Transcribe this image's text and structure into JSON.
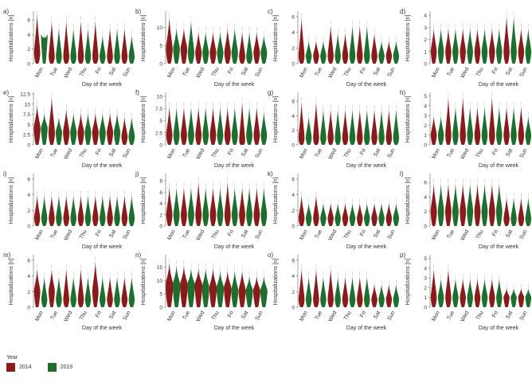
{
  "figure": {
    "legend": {
      "title": "Year",
      "items": [
        {
          "label": "2014",
          "color": "#8b1a1a"
        },
        {
          "label": "2019",
          "color": "#1e6e2e"
        }
      ]
    }
  },
  "chart_data": [
    {
      "panel": "a)",
      "type": "violin",
      "ylabel": "Hospitalizations [n]",
      "xlabel": "Day of the week",
      "ylim": [
        0,
        7
      ],
      "yticks": [
        0,
        2,
        4,
        6
      ],
      "categories": [
        "Mon",
        "Tue",
        "Wed",
        "Thu",
        "Fri",
        "Sat",
        "Sun"
      ],
      "max": [
        [
          7,
          4
        ],
        [
          6,
          5
        ],
        [
          6,
          5
        ],
        [
          6,
          5
        ],
        [
          6,
          4
        ],
        [
          5,
          5
        ],
        [
          5,
          4
        ]
      ],
      "median": [
        [
          1.5,
          4
        ],
        [
          1,
          1
        ],
        [
          1,
          1
        ],
        [
          1,
          1
        ],
        [
          1,
          1
        ],
        [
          1,
          1
        ],
        [
          1,
          1
        ]
      ]
    },
    {
      "panel": "b)",
      "type": "violin",
      "ylabel": "Hospitalizations [n]",
      "xlabel": "Day of the week",
      "ylim": [
        0,
        14
      ],
      "yticks": [
        0,
        5,
        10
      ],
      "categories": [
        "Mon",
        "Tue",
        "Wed",
        "Thu",
        "Fri",
        "Sat",
        "Sun"
      ],
      "max": [
        [
          13,
          10
        ],
        [
          10,
          12
        ],
        [
          9,
          9
        ],
        [
          9,
          9
        ],
        [
          10,
          10
        ],
        [
          9,
          9
        ],
        [
          9,
          8
        ]
      ],
      "median": [
        [
          4,
          4
        ],
        [
          4,
          3
        ],
        [
          3,
          3
        ],
        [
          3,
          3
        ],
        [
          3,
          3
        ],
        [
          2,
          2
        ],
        [
          3,
          3
        ]
      ]
    },
    {
      "panel": "c)",
      "type": "violin",
      "ylabel": "Hospitalizations [n]",
      "xlabel": "Day of the week",
      "ylim": [
        0,
        6.5
      ],
      "yticks": [
        0,
        2,
        4,
        6
      ],
      "categories": [
        "Mon",
        "Tue",
        "Wed",
        "Thu",
        "Fri",
        "Sat",
        "Sun"
      ],
      "max": [
        [
          6,
          3
        ],
        [
          3,
          3
        ],
        [
          5,
          4
        ],
        [
          4,
          5
        ],
        [
          5,
          5
        ],
        [
          4,
          3
        ],
        [
          3,
          3
        ]
      ],
      "median": [
        [
          1,
          1
        ],
        [
          1,
          1
        ],
        [
          1,
          1
        ],
        [
          1,
          1
        ],
        [
          1,
          1
        ],
        [
          1,
          1
        ],
        [
          1,
          1
        ]
      ]
    },
    {
      "panel": "d)",
      "type": "violin",
      "ylabel": "Hospitalizations [n]",
      "xlabel": "Day of the week",
      "ylim": [
        0,
        4.2
      ],
      "yticks": [
        0,
        1,
        2,
        3,
        4
      ],
      "categories": [
        "Mon",
        "Tue",
        "Wed",
        "Thu",
        "Fri",
        "Sat",
        "Sun"
      ],
      "max": [
        [
          3,
          3
        ],
        [
          3,
          3
        ],
        [
          3,
          3
        ],
        [
          3,
          3
        ],
        [
          3,
          3
        ],
        [
          4,
          4
        ],
        [
          3,
          3
        ]
      ],
      "median": [
        [
          1,
          1
        ],
        [
          1,
          1
        ],
        [
          1,
          1
        ],
        [
          1,
          1
        ],
        [
          1,
          1
        ],
        [
          1,
          1
        ],
        [
          1,
          1
        ]
      ]
    },
    {
      "panel": "e)",
      "type": "violin",
      "ylabel": "Hospitalizations [n]",
      "xlabel": "Day of the week",
      "ylim": [
        0,
        12.5
      ],
      "yticks": [
        0,
        2.5,
        5.0,
        7.5,
        10.0,
        12.5
      ],
      "categories": [
        "Mon",
        "Tue",
        "Wed",
        "Thu",
        "Fri",
        "Sat",
        "Sun"
      ],
      "max": [
        [
          10,
          8
        ],
        [
          12,
          7
        ],
        [
          9,
          8
        ],
        [
          8,
          8
        ],
        [
          8,
          8
        ],
        [
          8,
          8
        ],
        [
          7,
          7
        ]
      ],
      "median": [
        [
          4,
          4
        ],
        [
          3,
          3
        ],
        [
          3,
          3
        ],
        [
          3,
          3
        ],
        [
          3,
          3
        ],
        [
          3,
          3
        ],
        [
          2,
          2
        ]
      ]
    },
    {
      "panel": "f)",
      "type": "violin",
      "ylabel": "Hospitalizations [n]",
      "xlabel": "Day of the week",
      "ylim": [
        0,
        10.5
      ],
      "yticks": [
        0,
        2.5,
        5.0,
        7.5,
        10.0
      ],
      "categories": [
        "Mon",
        "Tue",
        "Wed",
        "Thu",
        "Fri",
        "Sat",
        "Sun"
      ],
      "max": [
        [
          8,
          8
        ],
        [
          8,
          8
        ],
        [
          8,
          8
        ],
        [
          8,
          8
        ],
        [
          8,
          8
        ],
        [
          9,
          8
        ],
        [
          8,
          7
        ]
      ],
      "median": [
        [
          2,
          2
        ],
        [
          2,
          2
        ],
        [
          2,
          2
        ],
        [
          2,
          2
        ],
        [
          2,
          2
        ],
        [
          1,
          2
        ],
        [
          2,
          2
        ]
      ]
    },
    {
      "panel": "g)",
      "type": "violin",
      "ylabel": "Hospitalizations [n]",
      "xlabel": "Day of the week",
      "ylim": [
        0,
        7
      ],
      "yticks": [
        0,
        2,
        4,
        6
      ],
      "categories": [
        "Mon",
        "Tue",
        "Wed",
        "Thu",
        "Fri",
        "Sat",
        "Sun"
      ],
      "max": [
        [
          6,
          4
        ],
        [
          6,
          5
        ],
        [
          5,
          5
        ],
        [
          5,
          5
        ],
        [
          5,
          5
        ],
        [
          5,
          5
        ],
        [
          5,
          5
        ]
      ],
      "median": [
        [
          1,
          1
        ],
        [
          1,
          1
        ],
        [
          1,
          1
        ],
        [
          1,
          1
        ],
        [
          1,
          1
        ],
        [
          1,
          1
        ],
        [
          1,
          1
        ]
      ]
    },
    {
      "panel": "h)",
      "type": "violin",
      "ylabel": "Hospitalizations [n]",
      "xlabel": "Day of the week",
      "ylim": [
        0,
        5.2
      ],
      "yticks": [
        0,
        1,
        2,
        3,
        4,
        5
      ],
      "categories": [
        "Mon",
        "Tue",
        "Wed",
        "Thu",
        "Fri",
        "Sat",
        "Sun"
      ],
      "max": [
        [
          3,
          3
        ],
        [
          5,
          4
        ],
        [
          5,
          4
        ],
        [
          4,
          4
        ],
        [
          5,
          4
        ],
        [
          4,
          4
        ],
        [
          4,
          3
        ]
      ],
      "median": [
        [
          1,
          1
        ],
        [
          1,
          1
        ],
        [
          1,
          1
        ],
        [
          1,
          1
        ],
        [
          1,
          1
        ],
        [
          1,
          1
        ],
        [
          1,
          1
        ]
      ]
    },
    {
      "panel": "i)",
      "type": "violin",
      "ylabel": "Hospitalizations [n]",
      "xlabel": "Day of the week",
      "ylim": [
        0,
        6.5
      ],
      "yticks": [
        0,
        2,
        4,
        6
      ],
      "categories": [
        "Mon",
        "Tue",
        "Wed",
        "Thu",
        "Fri",
        "Sat",
        "Sun"
      ],
      "max": [
        [
          4,
          4
        ],
        [
          4,
          4
        ],
        [
          4,
          4
        ],
        [
          4,
          4
        ],
        [
          4,
          4
        ],
        [
          4,
          4
        ],
        [
          4,
          4
        ]
      ],
      "median": [
        [
          1,
          1
        ],
        [
          1,
          1
        ],
        [
          1,
          1
        ],
        [
          1,
          1
        ],
        [
          1,
          1
        ],
        [
          1,
          1
        ],
        [
          1,
          1
        ]
      ]
    },
    {
      "panel": "j)",
      "type": "violin",
      "ylabel": "Hospitalizations [n]",
      "xlabel": "Day of the week",
      "ylim": [
        0,
        9
      ],
      "yticks": [
        0,
        2,
        4,
        6,
        8
      ],
      "categories": [
        "Mon",
        "Tue",
        "Wed",
        "Thu",
        "Fri",
        "Sat",
        "Sun"
      ],
      "max": [
        [
          7,
          7
        ],
        [
          7,
          7
        ],
        [
          8,
          7
        ],
        [
          7,
          7
        ],
        [
          8,
          7
        ],
        [
          7,
          7
        ],
        [
          7,
          7
        ]
      ],
      "median": [
        [
          2,
          2
        ],
        [
          2,
          2
        ],
        [
          2,
          2
        ],
        [
          2,
          2
        ],
        [
          2,
          2
        ],
        [
          2,
          2
        ],
        [
          2,
          2
        ]
      ]
    },
    {
      "panel": "k)",
      "type": "violin",
      "ylabel": "Hospitalizations [n]",
      "xlabel": "Day of the week",
      "ylim": [
        0,
        6.5
      ],
      "yticks": [
        0,
        2,
        4,
        6
      ],
      "categories": [
        "Mon",
        "Tue",
        "Wed",
        "Thu",
        "Fri",
        "Sat",
        "Sun"
      ],
      "max": [
        [
          4,
          3
        ],
        [
          4,
          3
        ],
        [
          3,
          3
        ],
        [
          3,
          3
        ],
        [
          3,
          3
        ],
        [
          3,
          3
        ],
        [
          3,
          3
        ]
      ],
      "median": [
        [
          1,
          1
        ],
        [
          1,
          1
        ],
        [
          1,
          1
        ],
        [
          1,
          1
        ],
        [
          1,
          1
        ],
        [
          1,
          1
        ],
        [
          1,
          1
        ]
      ]
    },
    {
      "panel": "l)",
      "type": "violin",
      "ylabel": "Hospitalizations [n]",
      "xlabel": "Day of the week",
      "ylim": [
        0,
        7
      ],
      "yticks": [
        0,
        2,
        4,
        6
      ],
      "categories": [
        "Mon",
        "Tue",
        "Wed",
        "Thu",
        "Fri",
        "Sat",
        "Sun"
      ],
      "max": [
        [
          6,
          6
        ],
        [
          6,
          6
        ],
        [
          6,
          6
        ],
        [
          6,
          6
        ],
        [
          6,
          6
        ],
        [
          4,
          4
        ],
        [
          4,
          4
        ]
      ],
      "median": [
        [
          2,
          2
        ],
        [
          2,
          2
        ],
        [
          2,
          2
        ],
        [
          2,
          2
        ],
        [
          2,
          2
        ],
        [
          1,
          1
        ],
        [
          1,
          1
        ]
      ]
    },
    {
      "panel": "m)",
      "type": "violin",
      "ylabel": "Hospitalizations [n]",
      "xlabel": "Day of the week",
      "ylim": [
        0,
        6.5
      ],
      "yticks": [
        0,
        2,
        4,
        6
      ],
      "categories": [
        "Mon",
        "Tue",
        "Wed",
        "Thu",
        "Fri",
        "Sat",
        "Sun"
      ],
      "max": [
        [
          5,
          4
        ],
        [
          5,
          4
        ],
        [
          5,
          4
        ],
        [
          5,
          4
        ],
        [
          6,
          4
        ],
        [
          4,
          4
        ],
        [
          4,
          4
        ]
      ],
      "median": [
        [
          2,
          1
        ],
        [
          2,
          1
        ],
        [
          1,
          1
        ],
        [
          1,
          1
        ],
        [
          2,
          1
        ],
        [
          1,
          1
        ],
        [
          1,
          1
        ]
      ]
    },
    {
      "panel": "n)",
      "type": "violin",
      "ylabel": "Hospitalizations [n]",
      "xlabel": "Day of the week",
      "ylim": [
        0,
        19
      ],
      "yticks": [
        0,
        5,
        10,
        15
      ],
      "categories": [
        "Mon",
        "Tue",
        "Wed",
        "Thu",
        "Fri",
        "Sat",
        "Sun"
      ],
      "max": [
        [
          17,
          16
        ],
        [
          16,
          15
        ],
        [
          15,
          15
        ],
        [
          15,
          14
        ],
        [
          14,
          14
        ],
        [
          14,
          12
        ],
        [
          12,
          12
        ]
      ],
      "median": [
        [
          8,
          8
        ],
        [
          8,
          8
        ],
        [
          8,
          7
        ],
        [
          7,
          7
        ],
        [
          7,
          6
        ],
        [
          6,
          6
        ],
        [
          6,
          6
        ]
      ]
    },
    {
      "panel": "o)",
      "type": "violin",
      "ylabel": "Hospitalizations [n]",
      "xlabel": "Day of the week",
      "ylim": [
        0,
        6.5
      ],
      "yticks": [
        0,
        2,
        4,
        6
      ],
      "categories": [
        "Mon",
        "Tue",
        "Wed",
        "Thu",
        "Fri",
        "Sat",
        "Sun"
      ],
      "max": [
        [
          5,
          4
        ],
        [
          5,
          4
        ],
        [
          5,
          4
        ],
        [
          4,
          4
        ],
        [
          4,
          4
        ],
        [
          3,
          3
        ],
        [
          3,
          3
        ]
      ],
      "median": [
        [
          1,
          1
        ],
        [
          1,
          1
        ],
        [
          1,
          1
        ],
        [
          1,
          1
        ],
        [
          1,
          1
        ],
        [
          1,
          1
        ],
        [
          1,
          1
        ]
      ]
    },
    {
      "panel": "p)",
      "type": "violin",
      "ylabel": "Hospitalizations [n]",
      "xlabel": "Day of the week",
      "ylim": [
        0,
        5.2
      ],
      "yticks": [
        0,
        1,
        2,
        3,
        4,
        5
      ],
      "categories": [
        "Mon",
        "Tue",
        "Wed",
        "Thu",
        "Fri",
        "Sat",
        "Sun"
      ],
      "max": [
        [
          4,
          3
        ],
        [
          4,
          3
        ],
        [
          3,
          3
        ],
        [
          3,
          3
        ],
        [
          3,
          3
        ],
        [
          2,
          2
        ],
        [
          2,
          2
        ]
      ],
      "median": [
        [
          1,
          1
        ],
        [
          1,
          1
        ],
        [
          1,
          1
        ],
        [
          1,
          1
        ],
        [
          1,
          1
        ],
        [
          1,
          1
        ],
        [
          1,
          1
        ]
      ]
    }
  ]
}
